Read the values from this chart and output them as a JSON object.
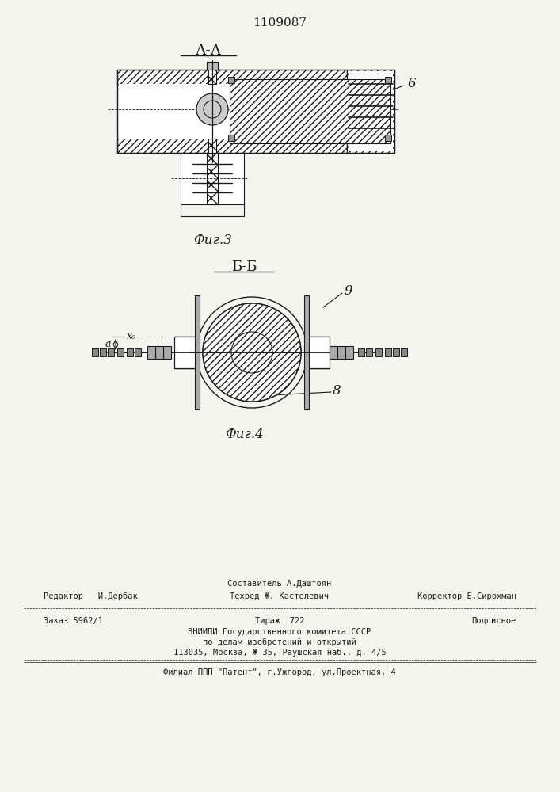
{
  "patent_number": "1109087",
  "fig3_label": "А-А",
  "fig3_caption": "Фиг.3",
  "fig4_label": "Б-Б",
  "fig4_caption": "Фиг.4",
  "label_6": "6",
  "label_8": "8",
  "label_9": "9",
  "label_xo": "х₀",
  "label_a": "а",
  "editor_line": "Редактор   И.Дербак",
  "composer_line": "Составитель А.Даштоян",
  "techred_line": "Техред Ж. Кастелевич",
  "corrector_line": "Корректор Е.Сирохман",
  "order_line": "Заказ 5962/1",
  "tirazh_line": "Тираж  722",
  "podpisnoe_line": "Подписное",
  "vniip_line": "ВНИИПИ Государственного комитета СССР",
  "po_delam_line": "по делам изобретений и открытий",
  "address_line": "113035, Москва, Ж-35, Раушская наб., д. 4/5",
  "filial_line": "Филиал ППП \"Патент\", г.Ужгород, ул.Проектная, 4",
  "bg_color": "#f5f5f0",
  "line_color": "#1a1a1a"
}
